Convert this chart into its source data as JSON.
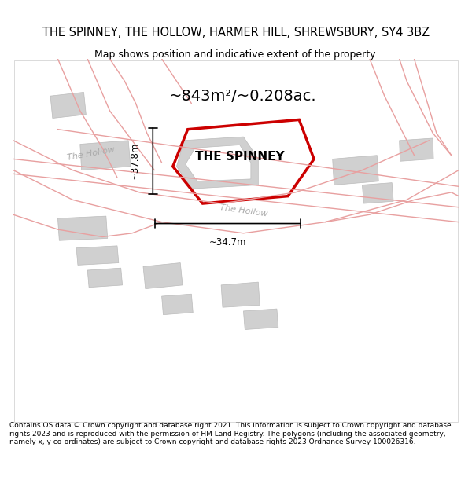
{
  "title_line1": "THE SPINNEY, THE HOLLOW, HARMER HILL, SHREWSBURY, SY4 3BZ",
  "title_line2": "Map shows position and indicative extent of the property.",
  "area_label": "~843m²/~0.208ac.",
  "property_label": "THE SPINNEY",
  "dim_vertical": "~37.8m",
  "dim_horizontal": "~34.7m",
  "road_label1": "The Hollow",
  "road_label2": "The Hollow",
  "footer": "Contains OS data © Crown copyright and database right 2021. This information is subject to Crown copyright and database rights 2023 and is reproduced with the permission of HM Land Registry. The polygons (including the associated geometry, namely x, y co-ordinates) are subject to Crown copyright and database rights 2023 Ordnance Survey 100026316.",
  "bg_color": "#ffffff",
  "map_bg": "#ffffff",
  "road_fill": "#f5f5f5",
  "building_fill": "#d0d0d0",
  "boundary_color": "#e8a0a0",
  "property_outline_color": "#cc0000",
  "dim_line_color": "#000000",
  "road_text_color": "#b0b0b0",
  "figsize": [
    6.0,
    6.25
  ],
  "dpi": 100
}
